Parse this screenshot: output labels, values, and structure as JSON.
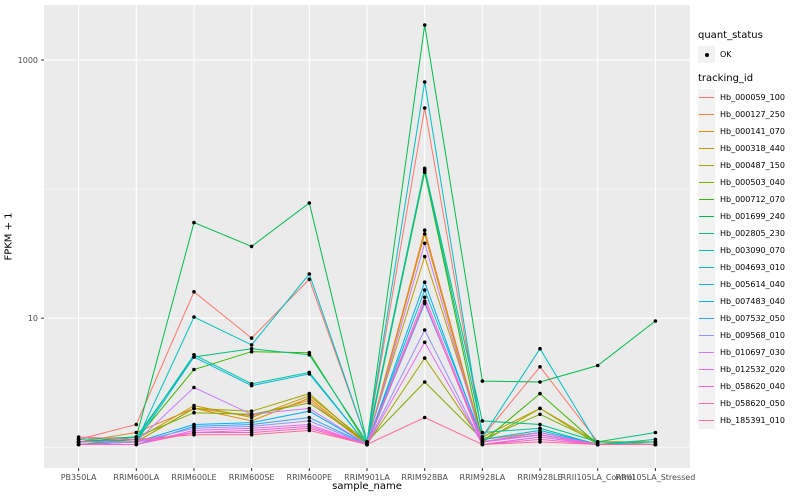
{
  "axes": {
    "x_title": "sample_name",
    "y_title": "FPKM + 1",
    "y_tick_labels": [
      "1000",
      "10"
    ],
    "y_tick_values": [
      1000,
      10
    ],
    "y_minor_values": [
      1,
      100
    ]
  },
  "legend": {
    "quant_title": "quant_status",
    "quant_items": [
      {
        "label": "OK",
        "marker": "point",
        "color": "#000000"
      }
    ],
    "tracking_title": "tracking_id"
  },
  "style": {
    "panel_bg": "#EBEBEB",
    "grid_color": "#FFFFFF",
    "tick_color": "#333333",
    "tick_label_color": "#4D4D4D",
    "point_color": "#000000",
    "legend_key_bg": "#F2F2F2"
  },
  "chart_data": {
    "type": "line",
    "yscale": "log10",
    "ylim": [
      0.69,
      2670
    ],
    "grid": true,
    "legend_position": "right",
    "xlabel": "sample_name",
    "ylabel": "FPKM + 1",
    "categories": [
      "PB350LA",
      "RRIM600LA",
      "RRIM600LE",
      "RRIM600SE",
      "RRIM600PE",
      "RRIM901LA",
      "RRIM928BA",
      "RRIM928LA",
      "RRIM928LE",
      "RRII105LA_Control",
      "RRII105LA_Stressed"
    ],
    "series": [
      {
        "name": "Hb_000059_100",
        "color": "#F8766D",
        "values": [
          1.15,
          1.5,
          16,
          7,
          20,
          1.1,
          425,
          1.2,
          4.2,
          1.1,
          1.05
        ]
      },
      {
        "name": "Hb_000127_250",
        "color": "#EA8331",
        "values": [
          1.1,
          1.3,
          2.0,
          1.75,
          2.3,
          1.05,
          48,
          1.15,
          1.3,
          1.05,
          1.05
        ]
      },
      {
        "name": "Hb_000141_070",
        "color": "#D89000",
        "values": [
          1.05,
          1.1,
          2.0,
          1.6,
          2.4,
          1.05,
          45,
          1.1,
          1.25,
          1.05,
          1.05
        ]
      },
      {
        "name": "Hb_000318_440",
        "color": "#C09B00",
        "values": [
          1.1,
          1.15,
          2.1,
          1.7,
          2.5,
          1.1,
          30,
          1.2,
          2.0,
          1.1,
          1.1
        ]
      },
      {
        "name": "Hb_000487_150",
        "color": "#A3A500",
        "values": [
          1.05,
          1.1,
          2.0,
          1.9,
          2.6,
          1.05,
          4.9,
          1.1,
          2.0,
          1.05,
          1.05
        ]
      },
      {
        "name": "Hb_000503_040",
        "color": "#7CAE00",
        "values": [
          1.1,
          1.2,
          1.85,
          1.8,
          2.2,
          1.1,
          3.2,
          1.15,
          1.8,
          1.1,
          1.1
        ]
      },
      {
        "name": "Hb_000712_070",
        "color": "#39B600",
        "values": [
          1.05,
          1.15,
          4.0,
          5.5,
          5.4,
          1.05,
          135,
          1.1,
          2.6,
          1.05,
          1.05
        ]
      },
      {
        "name": "Hb_001699_240",
        "color": "#00BB4E",
        "values": [
          1.1,
          1.2,
          55,
          36,
          78,
          1.1,
          1870,
          3.25,
          3.2,
          4.3,
          9.5
        ]
      },
      {
        "name": "Hb_002805_230",
        "color": "#00BF7D",
        "values": [
          1.15,
          1.2,
          5.0,
          5.8,
          5.2,
          1.1,
          145,
          1.6,
          1.5,
          1.1,
          1.3
        ]
      },
      {
        "name": "Hb_003090_070",
        "color": "#00C1A3",
        "values": [
          1.1,
          1.15,
          5.2,
          3.1,
          3.8,
          1.05,
          140,
          1.3,
          1.4,
          1.05,
          1.15
        ]
      },
      {
        "name": "Hb_004693_010",
        "color": "#00BFC4",
        "values": [
          1.1,
          1.1,
          10.2,
          6.2,
          22,
          1.1,
          676,
          1.2,
          5.8,
          1.05,
          1.1
        ]
      },
      {
        "name": "Hb_005614_040",
        "color": "#00BAE0",
        "values": [
          1.05,
          1.1,
          5.0,
          3.0,
          3.7,
          1.05,
          16.5,
          1.15,
          1.35,
          1.05,
          1.05
        ]
      },
      {
        "name": "Hb_007483_040",
        "color": "#00B0F6",
        "values": [
          1.05,
          1.1,
          1.5,
          1.55,
          1.9,
          1.05,
          19,
          1.1,
          1.3,
          1.05,
          1.05
        ]
      },
      {
        "name": "Hb_007532_050",
        "color": "#35A2FF",
        "values": [
          1.05,
          1.05,
          1.45,
          1.5,
          1.7,
          1.05,
          13,
          1.1,
          1.25,
          1.05,
          1.05
        ]
      },
      {
        "name": "Hb_009568_010",
        "color": "#9590FF",
        "values": [
          1.05,
          1.1,
          1.4,
          1.45,
          1.6,
          1.05,
          8.1,
          1.05,
          1.2,
          1.05,
          1.05
        ]
      },
      {
        "name": "Hb_010697_030",
        "color": "#C77CFF",
        "values": [
          1.1,
          1.1,
          2.9,
          1.8,
          2.0,
          1.05,
          38,
          1.1,
          1.3,
          1.05,
          1.05
        ]
      },
      {
        "name": "Hb_012532_020",
        "color": "#E76BF3",
        "values": [
          1.05,
          1.05,
          1.35,
          1.4,
          1.5,
          1.05,
          6.5,
          1.05,
          1.2,
          1.05,
          1.05
        ]
      },
      {
        "name": "Hb_058620_040",
        "color": "#FA62DB",
        "values": [
          1.1,
          1.1,
          1.3,
          1.35,
          1.45,
          1.05,
          14.5,
          1.1,
          1.25,
          1.05,
          1.05
        ]
      },
      {
        "name": "Hb_058620_050",
        "color": "#FF62BC",
        "values": [
          1.05,
          1.05,
          1.3,
          1.3,
          1.4,
          1.05,
          13.5,
          1.05,
          1.15,
          1.05,
          1.05
        ]
      },
      {
        "name": "Hb_185391_010",
        "color": "#FF6A98",
        "values": [
          1.2,
          1.15,
          1.25,
          1.25,
          1.35,
          1.05,
          1.7,
          1.05,
          1.1,
          1.05,
          1.05
        ]
      }
    ]
  }
}
